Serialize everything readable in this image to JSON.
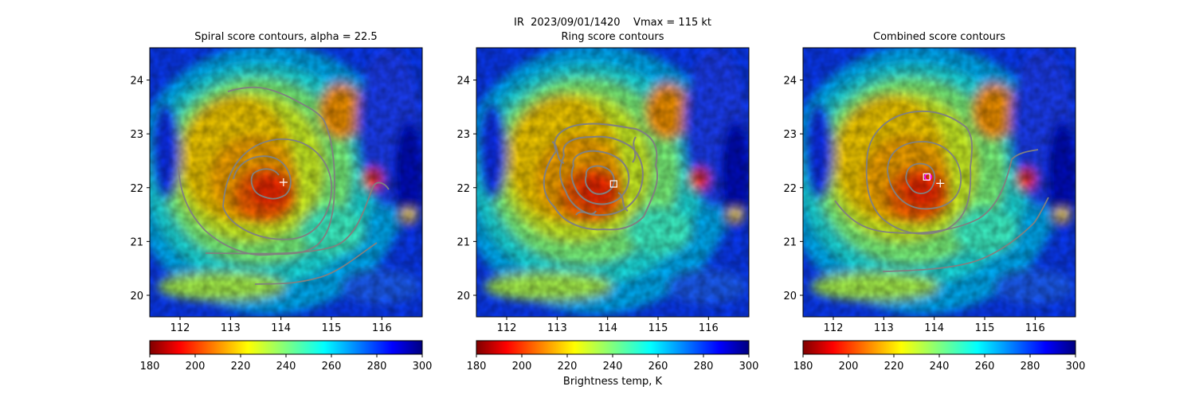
{
  "figure": {
    "suptitle": "IR  2023/09/01/1420    Vmax = 115 kt",
    "colorbar_label": "Brightness temp, K"
  },
  "chart_data": [
    {
      "type": "heatmap",
      "title": "Spiral score contours, alpha = 22.5",
      "x_range": [
        111.4,
        116.8
      ],
      "y_range": [
        19.6,
        24.6
      ],
      "x_ticks": [
        112,
        113,
        114,
        115,
        116
      ],
      "y_ticks": [
        20,
        21,
        22,
        23,
        24
      ],
      "colormap": "jet_r",
      "clim": [
        180,
        300
      ],
      "colorbar_ticks": [
        180,
        200,
        220,
        240,
        260,
        280,
        300
      ],
      "grid": false,
      "overlay": "contours",
      "contour_color": "#808080",
      "markers": [
        {
          "label": "+",
          "x": 114.05,
          "y": 22.1,
          "color": "#ffffff"
        }
      ]
    },
    {
      "type": "heatmap",
      "title": "Ring score contours",
      "x_range": [
        111.4,
        116.8
      ],
      "y_range": [
        19.6,
        24.6
      ],
      "x_ticks": [
        112,
        113,
        114,
        115,
        116
      ],
      "y_ticks": [
        20,
        21,
        22,
        23,
        24
      ],
      "colormap": "jet_r",
      "clim": [
        180,
        300
      ],
      "colorbar_ticks": [
        180,
        200,
        220,
        240,
        260,
        280,
        300
      ],
      "grid": false,
      "overlay": "contours",
      "contour_color": "#808080",
      "markers": [
        {
          "label": "square",
          "x": 114.12,
          "y": 22.07,
          "color": "#ffffff"
        }
      ]
    },
    {
      "type": "heatmap",
      "title": "Combined score contours",
      "x_range": [
        111.4,
        116.8
      ],
      "y_range": [
        19.6,
        24.6
      ],
      "x_ticks": [
        112,
        113,
        114,
        115,
        116
      ],
      "y_ticks": [
        20,
        21,
        22,
        23,
        24
      ],
      "colormap": "jet_r",
      "clim": [
        180,
        300
      ],
      "colorbar_ticks": [
        180,
        200,
        220,
        240,
        260,
        280,
        300
      ],
      "grid": false,
      "overlay": "contours",
      "contour_color": "#808080",
      "markers": [
        {
          "label": "circle",
          "x": 113.88,
          "y": 22.2,
          "color": "#ff00ff"
        },
        {
          "label": "square",
          "x": 113.85,
          "y": 22.2,
          "color": "#ffffff"
        },
        {
          "label": "+",
          "x": 114.12,
          "y": 22.08,
          "color": "#ffffff"
        }
      ]
    }
  ]
}
